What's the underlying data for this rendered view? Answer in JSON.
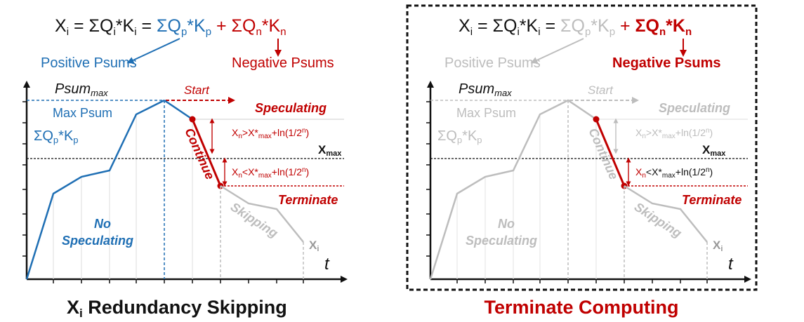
{
  "colors": {
    "blue": "#1f6fb4",
    "red": "#c00000",
    "gray": "#bdbdbd",
    "dark": "#111111"
  },
  "left": {
    "eq": {
      "xi_prefix": "X",
      "xi_sub": "i",
      "eq1": " = ΣQ",
      "qi_sub": "i",
      "star_k": "*K",
      "ki_sub": "i",
      "eq2": " = ",
      "pos_term": "ΣQ",
      "pos_sub_q": "p",
      "pos_star": "*K",
      "pos_sub_k": "p",
      "plus": " + ",
      "neg_term": "ΣQ",
      "neg_sub_q": "n",
      "neg_star": "*K",
      "neg_sub_k": "n"
    },
    "positive_label": "Positive Psums",
    "negative_label": "Negative Psums",
    "psum_max": "Psum",
    "psum_max_sub": "max",
    "start": "Start",
    "max_psum": "Max Psum",
    "sum_qp": "ΣQ",
    "sum_qp_sub_q": "p",
    "sum_qp_star": "*K",
    "sum_qp_sub_k": "p",
    "speculating": "Speculating",
    "cond_gt_x": "X",
    "cond_gt_sub": "n",
    "cond_gt_rest": ">X*",
    "cond_gt_max": "max",
    "cond_gt_ln": "+ln(1/2",
    "cond_gt_pow": "n",
    "cond_gt_end": ")",
    "xmax": "X",
    "xmax_sub": "max",
    "continue": "Continue",
    "cond_lt_x": "X",
    "cond_lt_sub": "n",
    "cond_lt_rest": "<X*",
    "cond_lt_max": "max",
    "cond_lt_ln": "+ln(1/2",
    "cond_lt_pow": "n",
    "cond_lt_end": ")",
    "terminate": "Terminate",
    "no": "No",
    "no_speculating": "Speculating",
    "skipping": "Skipping",
    "xi": "X",
    "xi_sub": "i",
    "t": "t",
    "title_x": "X",
    "title_sub": "i",
    "title_rest": " Redundancy Skipping"
  },
  "right": {
    "eq": {
      "xi_prefix": "X",
      "xi_sub": "i",
      "eq1": " = ΣQ",
      "qi_sub": "i",
      "star_k": "*K",
      "ki_sub": "i",
      "eq2": " = ",
      "pos_term": "ΣQ",
      "pos_sub_q": "p",
      "pos_star": "*K",
      "pos_sub_k": "p",
      "plus": " + ",
      "neg_term": "ΣQ",
      "neg_sub_q": "n",
      "neg_star": "*K",
      "neg_sub_k": "n"
    },
    "positive_label": "Positive Psums",
    "negative_label": "Negative Psums",
    "psum_max": "Psum",
    "psum_max_sub": "max",
    "start": "Start",
    "max_psum": "Max Psum",
    "sum_qp": "ΣQ",
    "sum_qp_sub_q": "p",
    "sum_qp_star": "*K",
    "sum_qp_sub_k": "p",
    "speculating": "Speculating",
    "cond_gt_x": "X",
    "cond_gt_sub": "n",
    "cond_gt_rest": ">X*",
    "cond_gt_max": "max",
    "cond_gt_ln": "+ln(1/2",
    "cond_gt_pow": "n",
    "cond_gt_end": ")",
    "xmax": "X",
    "xmax_sub": "max",
    "continue": "Continue",
    "cond_lt_x": "X",
    "cond_lt_sub": "n",
    "cond_lt_rest": "<X*",
    "cond_lt_max": "max",
    "cond_lt_ln": "+ln(1/2",
    "cond_lt_pow": "n",
    "cond_lt_end": ")",
    "terminate": "Terminate",
    "no": "No",
    "no_speculating": "Speculating",
    "skipping": "Skipping",
    "xi": "X",
    "xi_sub": "i",
    "t": "t",
    "title": "Terminate Computing"
  }
}
